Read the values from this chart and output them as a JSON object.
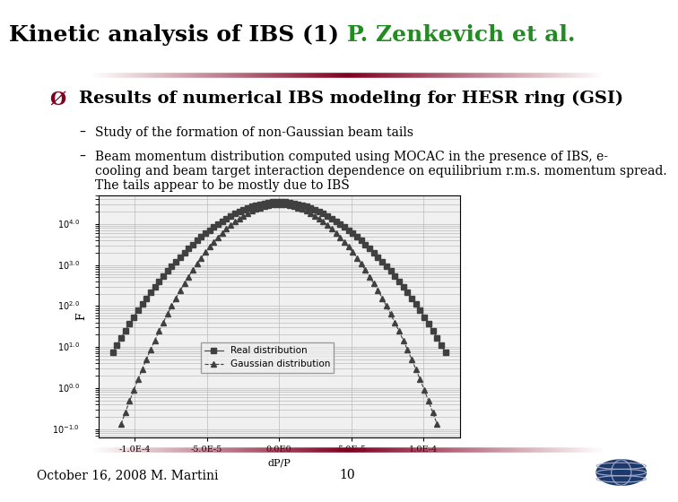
{
  "title_black": "Kinetic analysis of IBS (1) ",
  "title_green": "P. Zenkevich et al.",
  "title_fontsize": 18,
  "bullet_header": "Results of numerical IBS modeling for HESR ring (GSI)",
  "bullet_header_fontsize": 14,
  "bullet1": "Study of the formation of non-Gaussian beam tails",
  "bullet2": "Beam momentum distribution computed using MOCAC in the presence of IBS, e-\ncooling and beam target interaction dependence on equilibrium r.m.s. momentum spread.\nThe tails appear to be mostly due to IBS",
  "bullet_fontsize": 10,
  "footer_left": "October 16, 2008 M. Martini",
  "footer_center": "10",
  "footer_fontsize": 10,
  "bg_color": "#ffffff",
  "separator_color": "#800020",
  "plot_xlabel": "dP/P",
  "plot_ylabel": "F",
  "plot_xlim": [
    -0.000125,
    0.000125
  ],
  "sigma_real": 2.6e-05,
  "sigma_gauss": 2.2e-05,
  "peak_real": 35000,
  "peak_gauss": 30000,
  "x_range": 0.000115,
  "legend_label1": "Real distribution",
  "legend_label2": "Gaussian distribution",
  "line_color": "#404040",
  "marker_size": 4
}
